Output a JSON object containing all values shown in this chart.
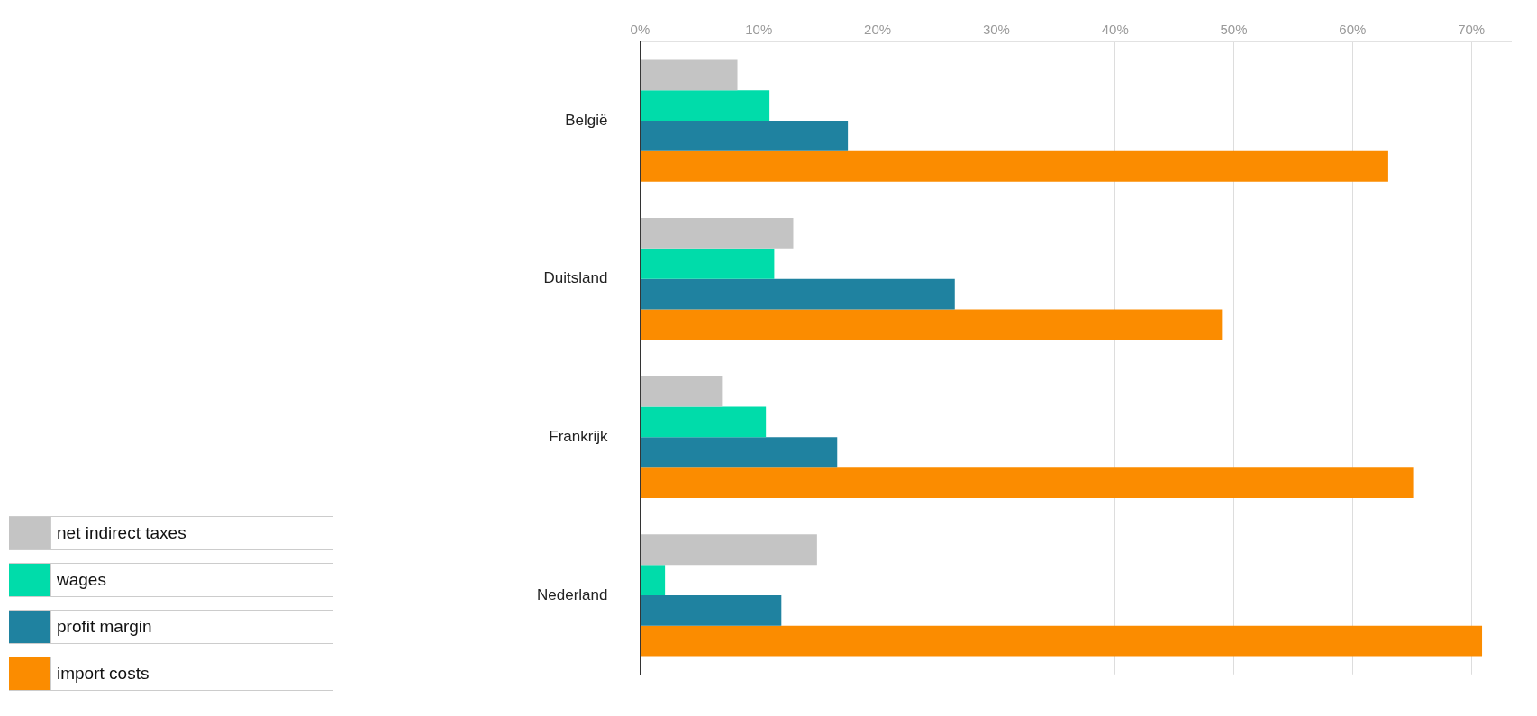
{
  "chart_data": {
    "type": "bar",
    "orientation": "horizontal",
    "categories": [
      "België",
      "Duitsland",
      "Frankrijk",
      "Nederland"
    ],
    "series": [
      {
        "name": "net indirect taxes",
        "color": "#c4c4c4",
        "values": [
          8.2,
          12.9,
          6.9,
          14.9
        ]
      },
      {
        "name": "wages",
        "color": "#00dcaa",
        "values": [
          10.9,
          11.3,
          10.6,
          2.1
        ]
      },
      {
        "name": "profit margin",
        "color": "#1f82a0",
        "values": [
          17.5,
          26.5,
          16.6,
          11.9
        ]
      },
      {
        "name": "import costs",
        "color": "#fb8c00",
        "values": [
          63,
          49,
          65.1,
          70.9
        ]
      }
    ],
    "xlim": [
      0,
      73.4
    ],
    "xticks": [
      {
        "value": 0,
        "label": "0%"
      },
      {
        "value": 10,
        "label": "10%"
      },
      {
        "value": 20,
        "label": "20%"
      },
      {
        "value": 30,
        "label": "30%"
      },
      {
        "value": 40,
        "label": "40%"
      },
      {
        "value": 50,
        "label": "50%"
      },
      {
        "value": 60,
        "label": "60%"
      },
      {
        "value": 70,
        "label": "70%"
      }
    ],
    "grid": "x",
    "legend": "bottom left"
  }
}
